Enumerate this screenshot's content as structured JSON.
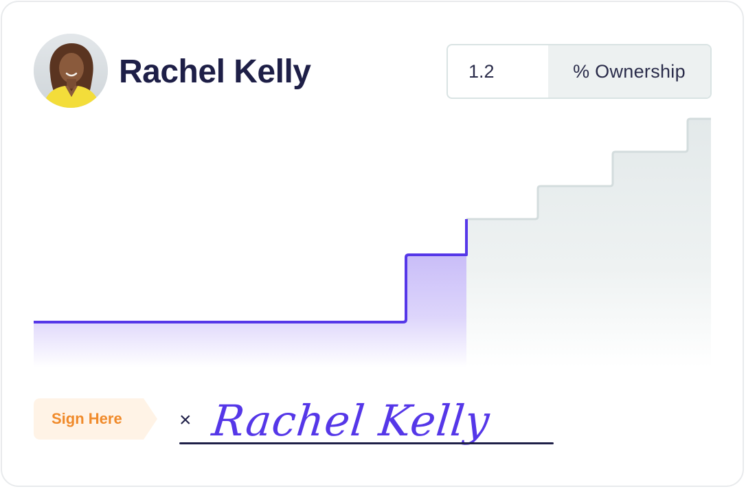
{
  "person": {
    "name": "Rachel Kelly",
    "avatar_icon": "person-portrait"
  },
  "ownership": {
    "value": "1.2",
    "unit_label": "% Ownership"
  },
  "signature": {
    "tag_label": "Sign Here",
    "x_mark": "×",
    "signed_name": "Rachel Kelly"
  },
  "colors": {
    "primary_text": "#1e1f47",
    "accent_purple": "#5537e8",
    "accent_orange": "#f08a2a",
    "tag_bg": "#fff3e6",
    "future_fill": "#e6ebec"
  },
  "chart_data": {
    "type": "area",
    "step": true,
    "title": "",
    "xlabel": "",
    "ylabel": "",
    "grid": false,
    "vested_steps": [
      1,
      2
    ],
    "unvested_steps": [
      3,
      4,
      5,
      6
    ]
  }
}
